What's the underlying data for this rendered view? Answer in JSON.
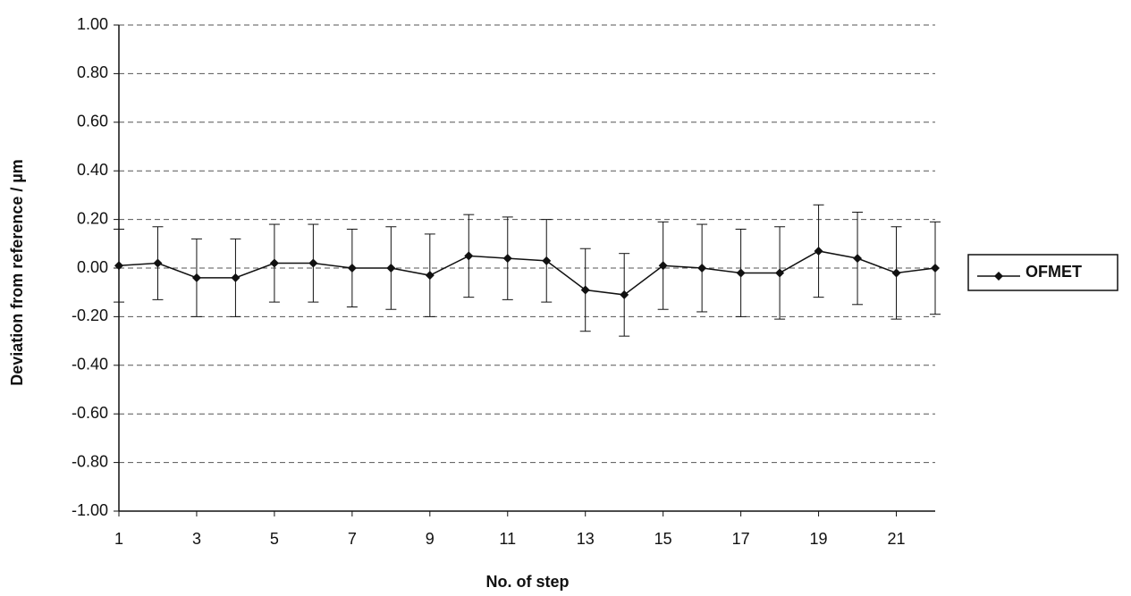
{
  "chart_data": {
    "type": "line",
    "x_label": "No. of step",
    "y_label": "Deviation from reference / µm",
    "x": [
      1,
      2,
      3,
      4,
      5,
      6,
      7,
      8,
      9,
      10,
      11,
      12,
      13,
      14,
      15,
      16,
      17,
      18,
      19,
      20,
      21,
      22
    ],
    "series": [
      {
        "name": "OFMET",
        "color": "#111111",
        "values": [
          0.01,
          0.02,
          -0.04,
          -0.04,
          0.02,
          0.02,
          0.0,
          0.0,
          -0.03,
          0.05,
          0.04,
          0.03,
          -0.09,
          -0.11,
          0.01,
          0.0,
          -0.02,
          -0.02,
          0.07,
          0.04,
          -0.02,
          0.0
        ],
        "errors": [
          0.15,
          0.15,
          0.16,
          0.16,
          0.16,
          0.16,
          0.16,
          0.17,
          0.17,
          0.17,
          0.17,
          0.17,
          0.17,
          0.17,
          0.18,
          0.18,
          0.18,
          0.19,
          0.19,
          0.19,
          0.19,
          0.19
        ]
      }
    ],
    "xlim": [
      1,
      22
    ],
    "xticks": [
      1,
      3,
      5,
      7,
      9,
      11,
      13,
      15,
      17,
      19,
      21
    ],
    "ylim": [
      -1,
      1
    ],
    "yticks": [
      {
        "value": -1,
        "label": "-1.00"
      },
      {
        "value": -0.8,
        "label": "-0.80"
      },
      {
        "value": -0.6,
        "label": "-0.60"
      },
      {
        "value": -0.4,
        "label": "-0.40"
      },
      {
        "value": -0.2,
        "label": "-0.20"
      },
      {
        "value": 0,
        "label": "0.00"
      },
      {
        "value": 0.2,
        "label": "0.20"
      },
      {
        "value": 0.4,
        "label": "0.40"
      },
      {
        "value": 0.6,
        "label": "0.60"
      },
      {
        "value": 0.8,
        "label": "0.80"
      },
      {
        "value": 1,
        "label": "1.00"
      }
    ],
    "grid": true,
    "legend": "right"
  }
}
